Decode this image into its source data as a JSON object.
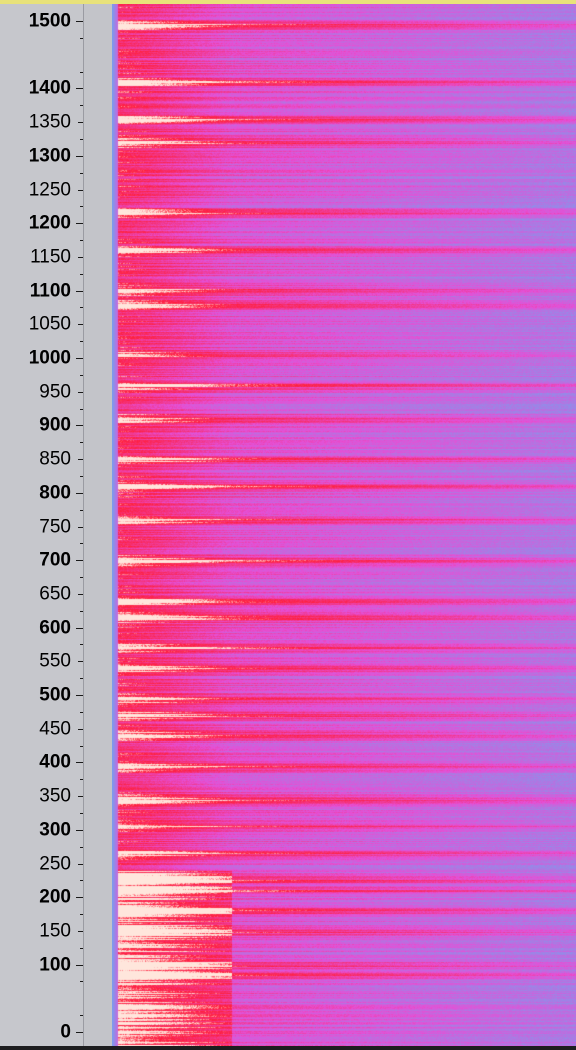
{
  "ruler": {
    "ticks": [
      {
        "label": "1500",
        "value": 1500,
        "major": true
      },
      {
        "label": "1400",
        "value": 1400,
        "major": true
      },
      {
        "label": "1350",
        "value": 1350,
        "major": false
      },
      {
        "label": "1300",
        "value": 1300,
        "major": true
      },
      {
        "label": "1250",
        "value": 1250,
        "major": false
      },
      {
        "label": "1200",
        "value": 1200,
        "major": true
      },
      {
        "label": "1150",
        "value": 1150,
        "major": false
      },
      {
        "label": "1100",
        "value": 1100,
        "major": true
      },
      {
        "label": "1050",
        "value": 1050,
        "major": false
      },
      {
        "label": "1000",
        "value": 1000,
        "major": true
      },
      {
        "label": "950",
        "value": 950,
        "major": false
      },
      {
        "label": "900",
        "value": 900,
        "major": true
      },
      {
        "label": "850",
        "value": 850,
        "major": false
      },
      {
        "label": "800",
        "value": 800,
        "major": true
      },
      {
        "label": "750",
        "value": 750,
        "major": false
      },
      {
        "label": "700",
        "value": 700,
        "major": true
      },
      {
        "label": "650",
        "value": 650,
        "major": false
      },
      {
        "label": "600",
        "value": 600,
        "major": true
      },
      {
        "label": "550",
        "value": 550,
        "major": false
      },
      {
        "label": "500",
        "value": 500,
        "major": true
      },
      {
        "label": "450",
        "value": 450,
        "major": false
      },
      {
        "label": "400",
        "value": 400,
        "major": true
      },
      {
        "label": "350",
        "value": 350,
        "major": false
      },
      {
        "label": "300",
        "value": 300,
        "major": true
      },
      {
        "label": "250",
        "value": 250,
        "major": false
      },
      {
        "label": "200",
        "value": 200,
        "major": true
      },
      {
        "label": "150",
        "value": 150,
        "major": false
      },
      {
        "label": "100",
        "value": 100,
        "major": true
      },
      {
        "label": "0",
        "value": 0,
        "major": true
      }
    ]
  },
  "spectrogram": {
    "colors": {
      "low": "#6fa6f0",
      "mid": "#e64fd6",
      "high": "#ff1f3d",
      "peak": "#ffe6dc",
      "ruler_bg": "#c6c7cc",
      "gap_bg": "#c3c4c9"
    },
    "strong_bands": [
      85,
      100,
      150,
      180,
      210,
      225,
      265,
      305,
      345,
      395,
      440,
      470,
      495,
      540,
      570,
      615,
      640,
      700,
      760,
      810,
      850,
      910,
      960,
      1005,
      1080,
      1100,
      1160,
      1215,
      1320,
      1355,
      1410,
      1495
    ]
  }
}
